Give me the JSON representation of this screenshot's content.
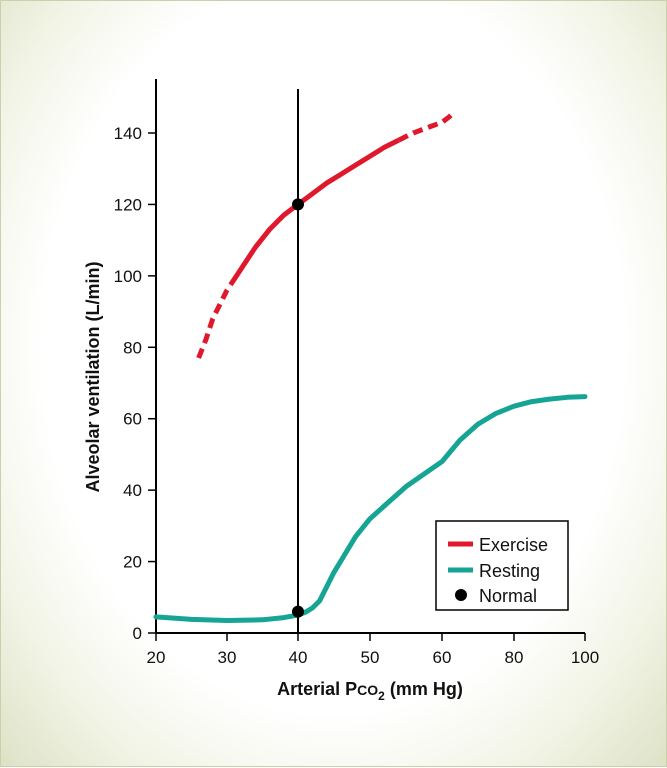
{
  "chart_data": {
    "type": "line",
    "xlabel": "Arterial P",
    "xlabel_sub": "CO",
    "xlabel_sub2": "2",
    "xlabel_unit": " (mm Hg)",
    "ylabel": "Alveolar ventilation (L/min)",
    "x_ticks": [
      20,
      30,
      40,
      50,
      60,
      80,
      100
    ],
    "y_ticks": [
      0,
      20,
      40,
      60,
      80,
      100,
      120,
      140
    ],
    "ylim": [
      0,
      150
    ],
    "grid": false,
    "legend_position": "bottom-right",
    "legend": [
      {
        "label": "Exercise",
        "marker": "line",
        "color": "#e0182c"
      },
      {
        "label": "Resting",
        "marker": "line",
        "color": "#16a595"
      },
      {
        "label": "Normal",
        "marker": "dot",
        "color": "#000000"
      }
    ],
    "series": [
      {
        "name": "Exercise",
        "color": "#e0182c",
        "x": [
          26,
          27,
          28,
          30,
          32,
          34,
          36,
          38,
          40,
          42,
          44,
          46,
          48,
          50,
          52,
          54,
          56,
          58,
          60,
          62,
          63
        ],
        "y": [
          77,
          82,
          88,
          96,
          102,
          108,
          113,
          117,
          120,
          123,
          126,
          128.5,
          131,
          133.5,
          136,
          138,
          140,
          141.5,
          143,
          144.5,
          145.5
        ],
        "dashed_x_ranges": [
          [
            26,
            30.5
          ],
          [
            54,
            63
          ]
        ]
      },
      {
        "name": "Resting",
        "color": "#16a595",
        "x": [
          20,
          25,
          30,
          35,
          38,
          40,
          41,
          42,
          43,
          45,
          48,
          50,
          55,
          60,
          65,
          70,
          75,
          80,
          85,
          90,
          95,
          100
        ],
        "y": [
          4.5,
          3.8,
          3.5,
          3.7,
          4.3,
          5,
          5.8,
          7,
          9,
          17,
          27,
          32,
          41,
          48,
          54,
          58.5,
          61.5,
          63.5,
          64.8,
          65.5,
          66,
          66.2
        ]
      }
    ],
    "points": [
      {
        "name": "Normal",
        "x": 40,
        "y": 120
      },
      {
        "name": "Normal",
        "x": 40,
        "y": 6
      }
    ],
    "reference_line": {
      "x": 40
    }
  }
}
